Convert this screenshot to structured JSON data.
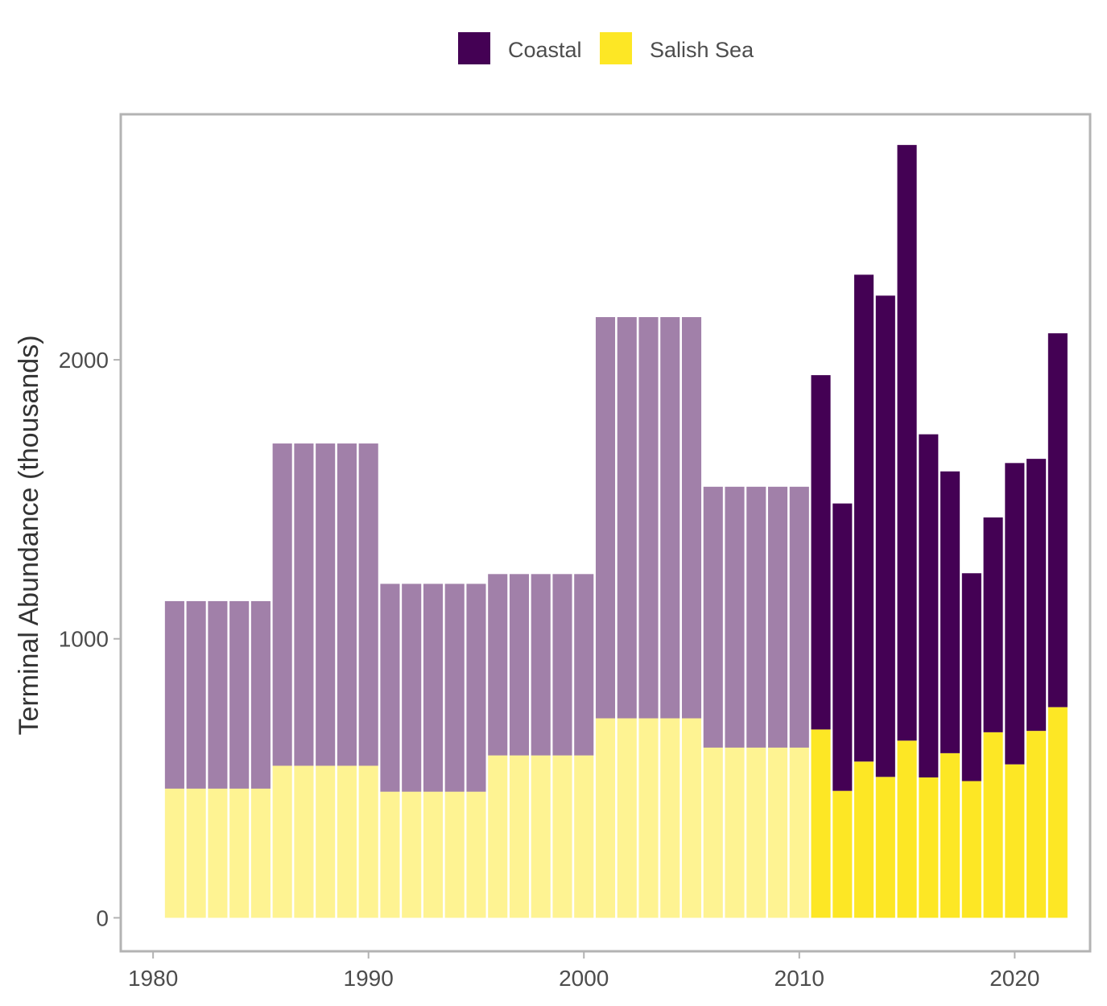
{
  "chart_data": {
    "type": "bar",
    "stacked": true,
    "ylabel": "Terminal Abundance (thousands)",
    "xlabel": "",
    "x_ticks": [
      1980,
      1990,
      2000,
      2010,
      2020
    ],
    "y_ticks": [
      0,
      1000,
      2000
    ],
    "xlim": [
      1978.5,
      2023.5
    ],
    "ylim": [
      -120,
      2880
    ],
    "grid": false,
    "legend_position": "top",
    "note": "Bars 1981–2010 are drawn semi-transparent (period averages); bars 2011–2022 are fully opaque.",
    "years": [
      1981,
      1982,
      1983,
      1984,
      1985,
      1986,
      1987,
      1988,
      1989,
      1990,
      1991,
      1992,
      1993,
      1994,
      1995,
      1996,
      1997,
      1998,
      1999,
      2000,
      2001,
      2002,
      2003,
      2004,
      2005,
      2006,
      2007,
      2008,
      2009,
      2010,
      2011,
      2012,
      2013,
      2014,
      2015,
      2016,
      2017,
      2018,
      2019,
      2020,
      2021,
      2022
    ],
    "faded_through_year": 2010,
    "series": [
      {
        "name": "Salish Sea",
        "color": "#fde725",
        "values": [
          463,
          463,
          463,
          463,
          463,
          545,
          545,
          545,
          545,
          545,
          452,
          452,
          452,
          452,
          452,
          582,
          582,
          582,
          582,
          582,
          715,
          715,
          715,
          715,
          715,
          610,
          610,
          610,
          610,
          610,
          675,
          455,
          560,
          505,
          635,
          503,
          590,
          490,
          665,
          550,
          670,
          755
        ]
      },
      {
        "name": "Coastal",
        "color": "#440154",
        "values": [
          672,
          672,
          672,
          672,
          672,
          1155,
          1155,
          1155,
          1155,
          1155,
          745,
          745,
          745,
          745,
          745,
          650,
          650,
          650,
          650,
          650,
          1438,
          1438,
          1438,
          1438,
          1438,
          935,
          935,
          935,
          935,
          935,
          1270,
          1030,
          1745,
          1725,
          2135,
          1230,
          1010,
          745,
          770,
          1080,
          975,
          1340
        ]
      }
    ],
    "legend": [
      {
        "name": "Coastal",
        "color": "#440154"
      },
      {
        "name": "Salish Sea",
        "color": "#fde725"
      }
    ]
  }
}
